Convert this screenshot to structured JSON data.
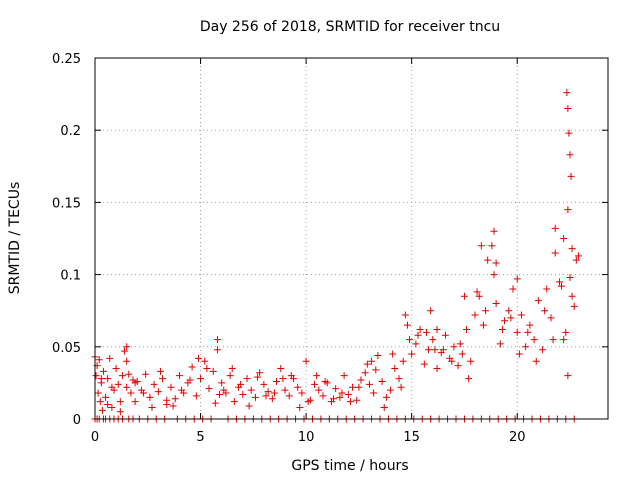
{
  "colors": {
    "series": "#e00000",
    "grid": "#a0a0a0",
    "axis": "#000000",
    "background": "#ffffff"
  },
  "chart_data": {
    "type": "scatter",
    "title": "Day 256 of 2018, SRMTID for receiver tncu",
    "xlabel": "GPS time / hours",
    "ylabel": "SRMTID / TECUs",
    "xlim": [
      0,
      24.3
    ],
    "ylim": [
      0,
      0.25
    ],
    "xticks": [
      0,
      5,
      10,
      15,
      20
    ],
    "xtick_labels": [
      "0",
      "5",
      "10",
      "15",
      "20"
    ],
    "yticks": [
      0,
      0.05,
      0.1,
      0.15,
      0.2,
      0.25
    ],
    "ytick_labels": [
      "0",
      "0.05",
      "0.1",
      "0.15",
      "0.2",
      "0.25"
    ],
    "grid": true,
    "marker": "plus",
    "series": [
      {
        "name": "SRMTID",
        "x": [
          0.0,
          0.05,
          0.1,
          0.15,
          0.2,
          0.25,
          0.3,
          0.35,
          0.4,
          0.5,
          0.6,
          0.7,
          0.8,
          0.9,
          1.0,
          1.1,
          1.2,
          1.3,
          1.4,
          1.5,
          1.6,
          1.7,
          1.8,
          1.9,
          2.0,
          2.2,
          2.4,
          2.6,
          2.8,
          3.0,
          3.2,
          3.4,
          3.6,
          3.8,
          4.0,
          4.2,
          4.4,
          4.6,
          4.8,
          5.0,
          5.2,
          5.4,
          5.6,
          5.8,
          5.9,
          6.0,
          6.2,
          6.4,
          6.6,
          6.8,
          7.0,
          7.2,
          7.4,
          7.6,
          7.8,
          8.0,
          8.2,
          8.4,
          8.6,
          8.8,
          9.0,
          9.2,
          9.4,
          9.6,
          9.8,
          10.0,
          10.2,
          10.4,
          10.6,
          10.8,
          11.0,
          11.2,
          11.4,
          11.6,
          11.8,
          12.0,
          12.2,
          12.4,
          12.6,
          12.8,
          13.0,
          13.2,
          13.4,
          13.6,
          13.8,
          14.0,
          14.2,
          14.4,
          14.6,
          14.8,
          15.0,
          15.2,
          15.4,
          15.6,
          15.8,
          16.0,
          16.2,
          16.4,
          16.6,
          16.8,
          17.0,
          17.2,
          17.4,
          17.6,
          17.8,
          18.0,
          18.2,
          18.4,
          18.6,
          18.8,
          19.0,
          19.2,
          19.4,
          19.6,
          19.8,
          20.0,
          20.2,
          20.4,
          20.6,
          20.8,
          21.0,
          21.2,
          21.4,
          21.6,
          21.8,
          22.0,
          22.2,
          22.4,
          22.6,
          22.8,
          0.3,
          0.8,
          1.5,
          2.3,
          3.1,
          3.7,
          4.5,
          5.3,
          6.1,
          6.9,
          7.7,
          8.5,
          9.3,
          10.1,
          10.9,
          11.7,
          12.5,
          13.3,
          14.1,
          14.9,
          15.7,
          16.5,
          17.3,
          18.1,
          18.9,
          19.7,
          20.5,
          21.3,
          22.1,
          22.7,
          0.6,
          1.2,
          1.9,
          2.7,
          3.4,
          4.1,
          4.9,
          5.7,
          6.5,
          7.3,
          8.1,
          8.9,
          9.7,
          10.5,
          11.3,
          12.1,
          12.9,
          13.7,
          14.5,
          15.3,
          16.1,
          16.9,
          17.7,
          18.5,
          19.3,
          20.1,
          20.9,
          21.7,
          22.3,
          22.5,
          22.35,
          22.4,
          22.45,
          22.5,
          22.55,
          18.3,
          18.9,
          19.0,
          17.5,
          20.0,
          21.8,
          22.6,
          22.9,
          15.9,
          16.2,
          5.8,
          1.5,
          13.1,
          14.7,
          22.2,
          22.4,
          0.0,
          0.1,
          0.2,
          0.4,
          0.5,
          0.7,
          0.9,
          1.1,
          1.3,
          1.6,
          1.8,
          2.1,
          2.5,
          2.9,
          3.3,
          3.9,
          4.3,
          4.7,
          5.1,
          5.5,
          6.3,
          6.7,
          7.1,
          7.5,
          7.9,
          8.3,
          8.7,
          9.1,
          9.5,
          9.9,
          10.3,
          10.7,
          11.1,
          11.5,
          11.9,
          12.3,
          12.7,
          13.1,
          13.5,
          13.9,
          14.3,
          14.7,
          15.1,
          15.5,
          15.9,
          16.3,
          16.7,
          17.1,
          17.5,
          17.9,
          18.3,
          18.7,
          19.1,
          19.5,
          19.9,
          20.3,
          20.7,
          21.1,
          21.5,
          21.9,
          22.3,
          22.7
        ],
        "y": [
          0.043,
          0.03,
          0.037,
          0.018,
          0.041,
          0.012,
          0.025,
          0.006,
          0.033,
          0.015,
          0.028,
          0.042,
          0.008,
          0.02,
          0.035,
          0.024,
          0.012,
          0.03,
          0.047,
          0.022,
          0.031,
          0.018,
          0.027,
          0.012,
          0.026,
          0.02,
          0.031,
          0.015,
          0.024,
          0.019,
          0.028,
          0.01,
          0.022,
          0.014,
          0.03,
          0.018,
          0.025,
          0.036,
          0.016,
          0.028,
          0.04,
          0.021,
          0.033,
          0.048,
          0.017,
          0.025,
          0.018,
          0.03,
          0.012,
          0.022,
          0.017,
          0.028,
          0.02,
          0.015,
          0.032,
          0.024,
          0.019,
          0.014,
          0.026,
          0.035,
          0.02,
          0.016,
          0.028,
          0.022,
          0.018,
          0.04,
          0.013,
          0.024,
          0.02,
          0.016,
          0.025,
          0.012,
          0.021,
          0.015,
          0.03,
          0.017,
          0.022,
          0.013,
          0.027,
          0.032,
          0.024,
          0.018,
          0.044,
          0.026,
          0.015,
          0.02,
          0.035,
          0.028,
          0.04,
          0.065,
          0.045,
          0.052,
          0.062,
          0.038,
          0.048,
          0.055,
          0.035,
          0.046,
          0.058,
          0.042,
          0.05,
          0.037,
          0.045,
          0.062,
          0.04,
          0.072,
          0.085,
          0.065,
          0.11,
          0.12,
          0.08,
          0.052,
          0.068,
          0.075,
          0.09,
          0.06,
          0.072,
          0.05,
          0.065,
          0.055,
          0.082,
          0.048,
          0.09,
          0.07,
          0.115,
          0.095,
          0.125,
          0.145,
          0.085,
          0.11,
          0.028,
          0.022,
          0.04,
          0.018,
          0.033,
          0.009,
          0.027,
          0.035,
          0.02,
          0.024,
          0.029,
          0.018,
          0.03,
          0.012,
          0.026,
          0.018,
          0.022,
          0.034,
          0.045,
          0.055,
          0.06,
          0.048,
          0.052,
          0.088,
          0.1,
          0.07,
          0.06,
          0.075,
          0.092,
          0.078,
          0.01,
          0.005,
          0.025,
          0.008,
          0.013,
          0.02,
          0.042,
          0.011,
          0.035,
          0.009,
          0.016,
          0.028,
          0.008,
          0.03,
          0.014,
          0.012,
          0.038,
          0.008,
          0.022,
          0.058,
          0.048,
          0.04,
          0.028,
          0.075,
          0.062,
          0.045,
          0.04,
          0.055,
          0.06,
          0.098,
          0.226,
          0.215,
          0.198,
          0.183,
          0.168,
          0.12,
          0.13,
          0.108,
          0.085,
          0.097,
          0.132,
          0.118,
          0.113,
          0.075,
          0.062,
          0.055,
          0.05,
          0.04,
          0.072,
          0.055,
          0.03,
          0.0,
          0.0,
          0.0,
          0.0,
          0.0,
          0.0,
          0.0,
          0.0,
          0.0,
          0.0,
          0.0,
          0.0,
          0.0,
          0.0,
          0.0,
          0.0,
          0.0,
          0.0,
          0.0,
          0.0,
          0.0,
          0.0,
          0.0,
          0.0,
          0.0,
          0.0,
          0.0,
          0.0,
          0.0,
          0.0,
          0.0,
          0.0,
          0.0,
          0.0,
          0.0,
          0.0,
          0.0,
          0.0,
          0.0,
          0.0,
          0.0,
          0.0,
          0.0,
          0.0,
          0.0,
          0.0,
          0.0,
          0.0,
          0.0,
          0.0,
          0.0,
          0.0,
          0.0,
          0.0,
          0.0,
          0.0,
          0.0,
          0.0,
          0.0,
          0.0,
          0.0,
          0.0
        ]
      }
    ]
  }
}
